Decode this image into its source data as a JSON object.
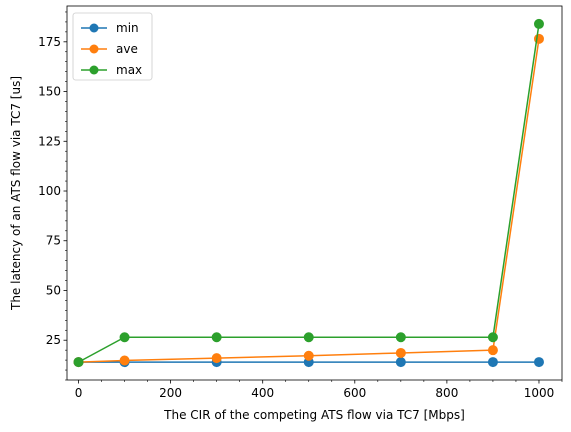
{
  "chart_data": {
    "type": "line",
    "xlabel": "The CIR of the competing ATS flow via TC7 [Mbps]",
    "ylabel": "The latency of an ATS flow via TC7 [us]",
    "xlim": [
      -25,
      1050
    ],
    "ylim": [
      5,
      193
    ],
    "x_ticks": [
      0,
      200,
      400,
      600,
      800,
      1000
    ],
    "y_ticks": [
      25,
      50,
      75,
      100,
      125,
      150,
      175
    ],
    "x": [
      0,
      100,
      300,
      500,
      700,
      900,
      1000
    ],
    "series": [
      {
        "name": "min",
        "color": "#1f77b4",
        "values": [
          14,
          14,
          14,
          14,
          14,
          14,
          14
        ]
      },
      {
        "name": "ave",
        "color": "#ff7f0e",
        "values": [
          14,
          14.8,
          16,
          17.2,
          18.6,
          20,
          176.5
        ]
      },
      {
        "name": "max",
        "color": "#2ca02c",
        "values": [
          14,
          26.5,
          26.5,
          26.5,
          26.5,
          26.5,
          184
        ]
      }
    ],
    "legend_position": "top-left",
    "grid": false
  }
}
